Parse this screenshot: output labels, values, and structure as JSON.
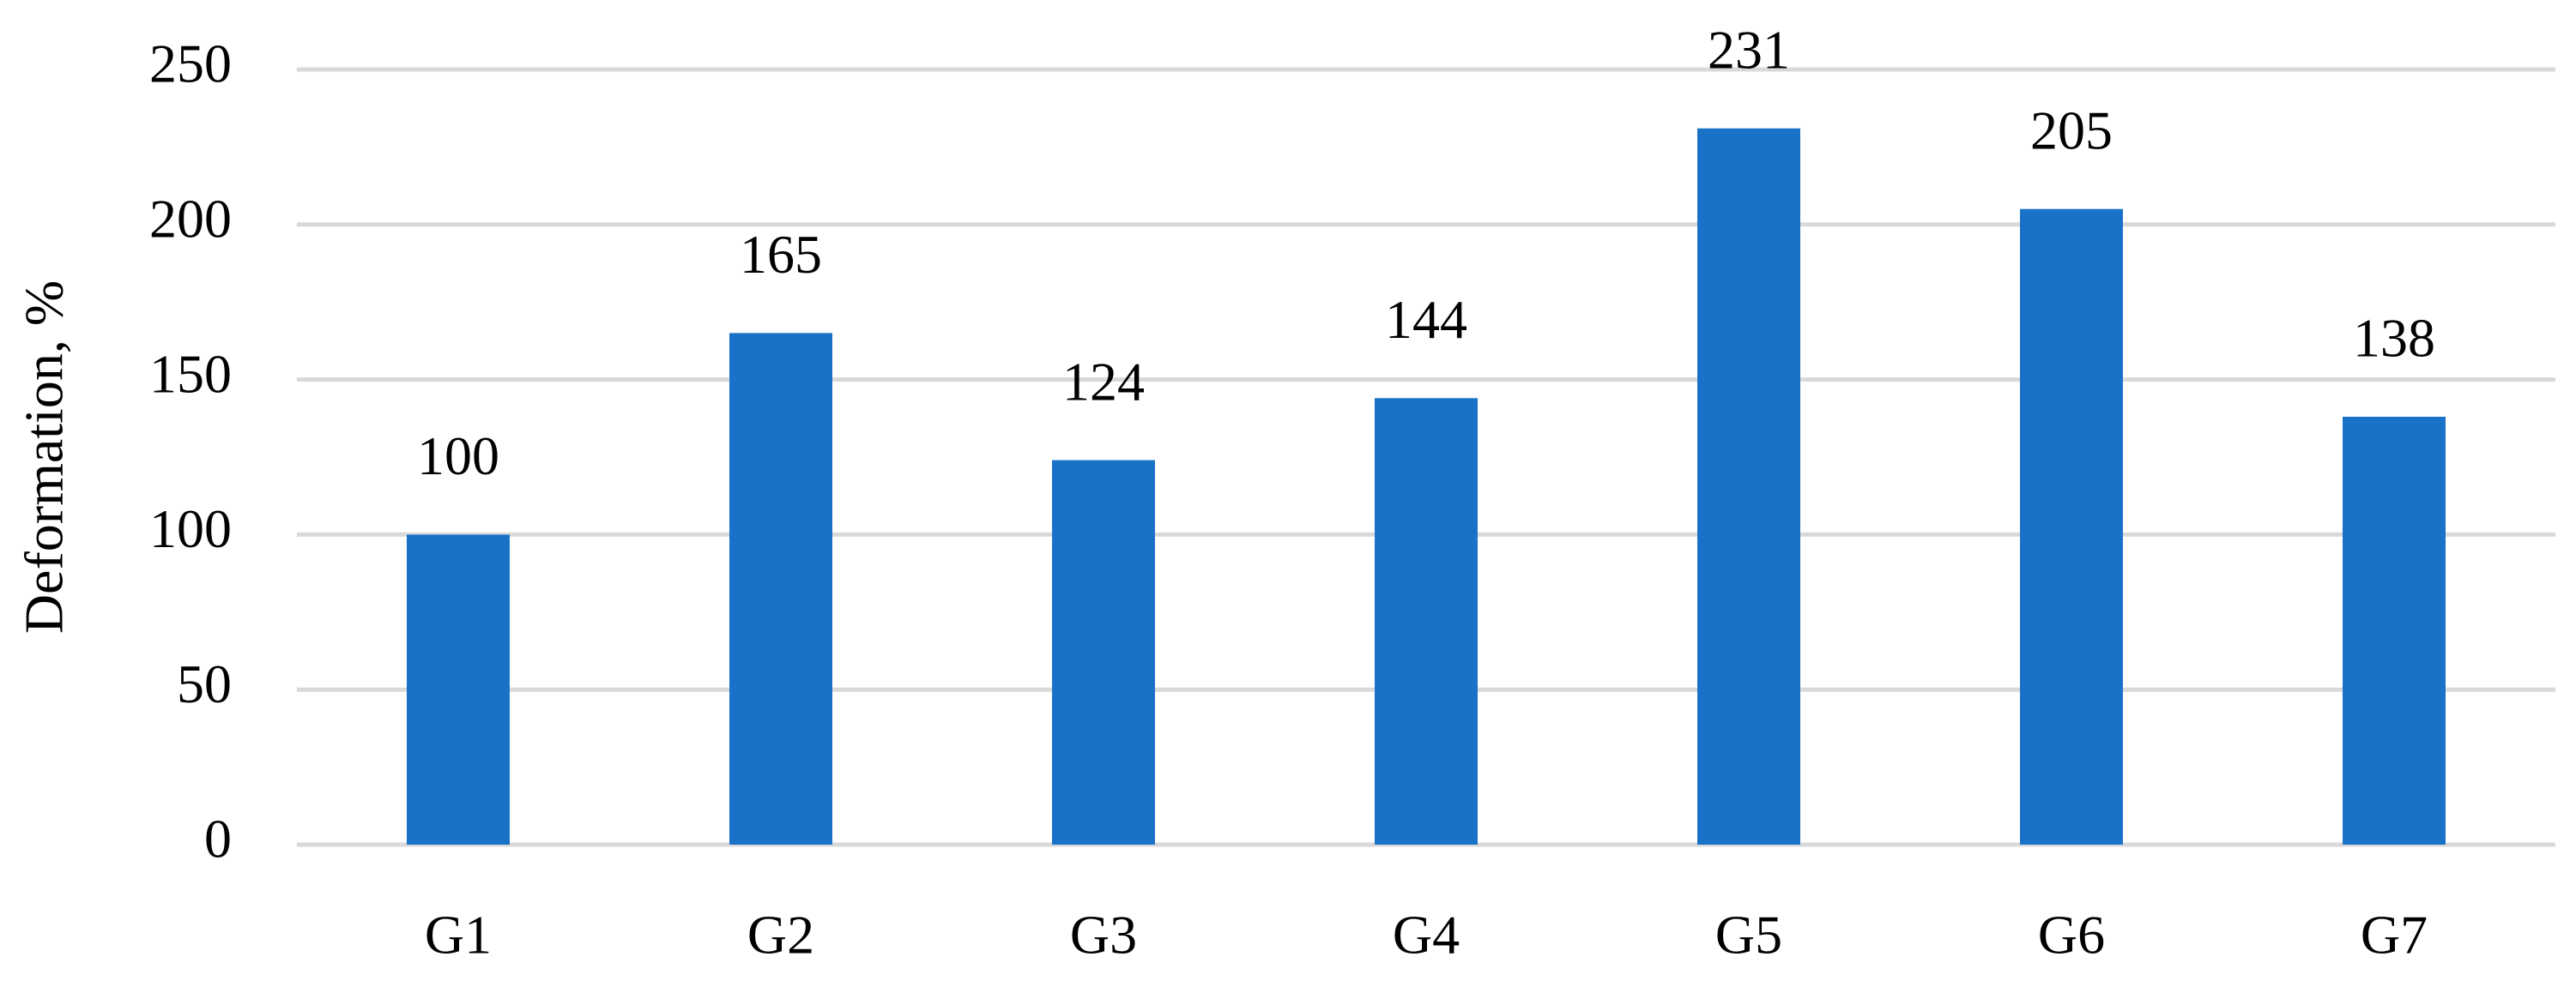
{
  "chart_data": {
    "type": "bar",
    "y_label": "Deformation, %",
    "categories": [
      "G1",
      "G2",
      "G3",
      "G4",
      "G5",
      "G6",
      "G7"
    ],
    "values": [
      100,
      165,
      124,
      144,
      231,
      205,
      138
    ],
    "color": "#1a72c8",
    "data_labels": true,
    "ylim": [
      0,
      250
    ],
    "yticks": [
      0,
      50,
      100,
      150,
      200,
      250
    ],
    "grid": true
  }
}
